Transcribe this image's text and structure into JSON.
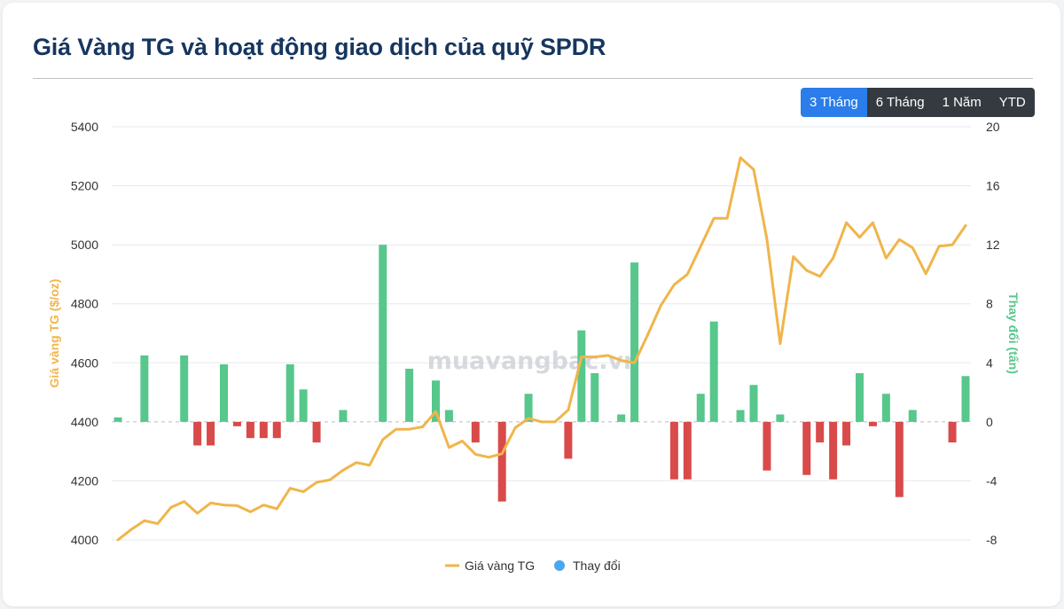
{
  "page": {
    "title": "Giá Vàng TG và hoạt động giao dịch của quỹ SPDR"
  },
  "range_buttons": [
    {
      "label": "3 Tháng",
      "active": true
    },
    {
      "label": "6 Tháng",
      "active": false
    },
    {
      "label": "1 Năm",
      "active": false
    },
    {
      "label": "YTD",
      "active": false
    }
  ],
  "watermark": "muavangbac.vn",
  "chart_data": {
    "type": "line+bar",
    "title": "Giá Vàng TG và hoạt động giao dịch của quỹ SPDR",
    "y_left": {
      "label": "Giá vàng TG ($/oz)",
      "range": [
        4000,
        5400
      ],
      "ticks": [
        "4000",
        "4200",
        "4400",
        "4600",
        "4800",
        "5000",
        "5200",
        "5400"
      ]
    },
    "y_right": {
      "label": "Thay đổi (tấn)",
      "range": [
        -8,
        20
      ],
      "ticks": [
        "-8",
        "-4",
        "0",
        "4",
        "8",
        "12",
        "16",
        "20"
      ]
    },
    "grid": true,
    "legend_position": "bottom-center",
    "legend": [
      {
        "name": "Giá vàng TG",
        "color": "#f0b54a",
        "symbol": "line"
      },
      {
        "name": "Thay đổi",
        "color": "#4aa8f0",
        "symbol": "dot"
      }
    ],
    "colors": {
      "price_line": "#f0b54a",
      "bar_positive": "#57c78c",
      "bar_negative": "#d94a4a"
    },
    "price_series": {
      "name": "Giá vàng TG",
      "values": [
        4000,
        4035,
        4065,
        4055,
        4110,
        4130,
        4090,
        4125,
        4118,
        4116,
        4095,
        4118,
        4105,
        4175,
        4163,
        4195,
        4203,
        4236,
        4262,
        4253,
        4340,
        4375,
        4375,
        4383,
        4435,
        4313,
        4335,
        4290,
        4280,
        4292,
        4380,
        4412,
        4400,
        4400,
        4440,
        4620,
        4620,
        4625,
        4608,
        4600,
        4695,
        4795,
        4865,
        4900,
        4995,
        5090,
        5090,
        5295,
        5255,
        5020,
        4665,
        4960,
        4913,
        4893,
        4955,
        5075,
        5025,
        5075,
        4955,
        5018,
        4990,
        4902,
        4995,
        5000,
        5065
      ]
    },
    "change_series": {
      "name": "Thay đổi",
      "values": [
        0.3,
        0,
        4.5,
        0,
        0,
        4.5,
        -1.6,
        -1.6,
        3.9,
        -0.3,
        -1.1,
        -1.1,
        -1.1,
        3.9,
        2.2,
        -1.4,
        0,
        0.8,
        0,
        0,
        12,
        0,
        3.6,
        0,
        2.8,
        0.8,
        0,
        -1.4,
        0,
        -5.4,
        0,
        1.9,
        0,
        0,
        -2.5,
        6.2,
        3.3,
        0,
        0.5,
        10.8,
        0,
        0,
        -3.9,
        -3.9,
        1.9,
        6.8,
        0,
        0.8,
        2.5,
        -3.3,
        0.5,
        0,
        -3.6,
        -1.4,
        -3.9,
        -1.6,
        3.3,
        -0.3,
        1.9,
        -5.1,
        0.8,
        0,
        0,
        -1.4,
        3.1
      ]
    }
  }
}
